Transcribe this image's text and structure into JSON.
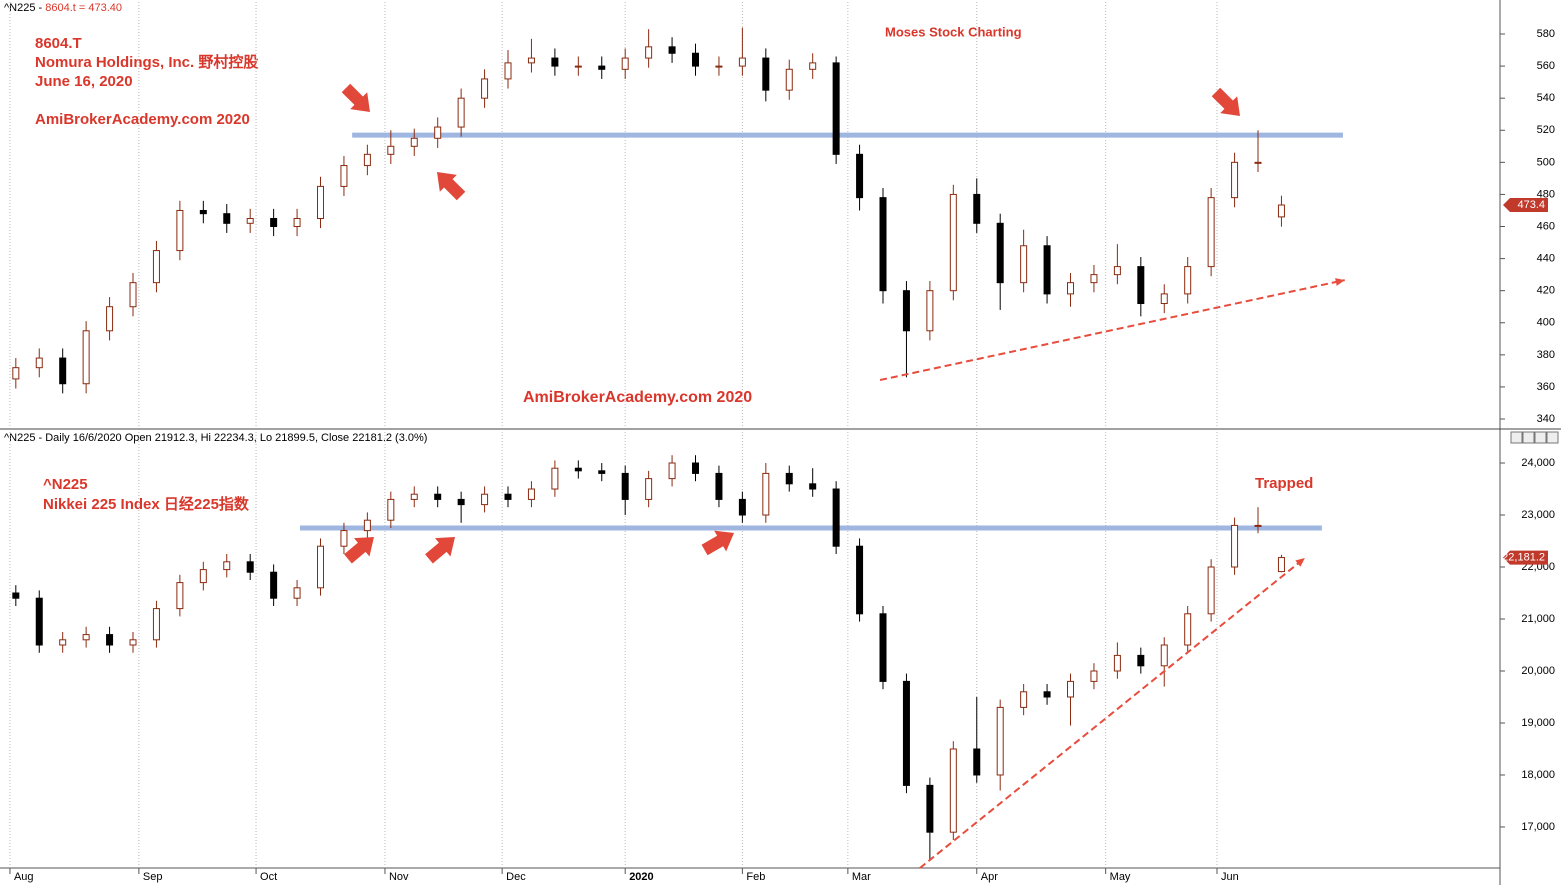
{
  "chart_data": [
    {
      "type": "candlestick",
      "header": [
        "^N225 -",
        "8604.t = 473.40"
      ],
      "annotations": [
        "8604.T",
        "Nomura Holdings, Inc.  野村控股",
        "June 16, 2020",
        "AmiBrokerAcademy.com  2020",
        "Moses Stock Charting",
        "AmiBrokerAcademy.com   2020"
      ],
      "x": [
        1,
        5,
        9,
        13,
        17,
        21,
        25,
        29,
        33,
        37,
        41,
        45,
        49,
        53,
        57,
        61,
        65,
        69,
        73,
        77,
        81,
        85,
        89,
        93,
        97,
        101,
        105,
        109,
        113,
        117,
        121,
        125,
        129,
        133,
        137,
        141,
        145,
        149,
        153,
        157,
        161,
        165,
        169,
        173,
        177,
        181,
        185,
        189,
        193,
        197,
        201,
        205,
        209,
        213,
        217
      ],
      "open": [
        365,
        372,
        378,
        362,
        395,
        410,
        425,
        445,
        470,
        468,
        462,
        465,
        460,
        465,
        485,
        498,
        505,
        510,
        515,
        522,
        540,
        552,
        562,
        565,
        560,
        560,
        558,
        565,
        572,
        568,
        560,
        560,
        565,
        545,
        558,
        562,
        505,
        478,
        420,
        395,
        420,
        480,
        462,
        425,
        448,
        418,
        425,
        430,
        435,
        412,
        418,
        435,
        478,
        500,
        466
      ],
      "high": [
        378,
        384,
        384,
        401,
        416,
        431,
        451,
        476,
        476,
        474,
        471,
        471,
        471,
        491,
        504,
        511,
        520,
        521,
        528,
        546,
        558,
        570,
        577,
        571,
        566,
        566,
        571,
        583,
        578,
        574,
        566,
        584,
        571,
        564,
        568,
        566,
        511,
        484,
        426,
        426,
        486,
        490,
        468,
        458,
        454,
        431,
        436,
        449,
        441,
        424,
        441,
        484,
        506,
        520,
        479.2
      ],
      "low": [
        359,
        366,
        356,
        356,
        389,
        404,
        419,
        439,
        462,
        456,
        456,
        454,
        454,
        459,
        479,
        492,
        499,
        504,
        509,
        516,
        534,
        546,
        556,
        554,
        554,
        552,
        552,
        559,
        562,
        554,
        554,
        554,
        538,
        539,
        552,
        499,
        470,
        412,
        366,
        389,
        414,
        456,
        408,
        419,
        412,
        410,
        419,
        424,
        404,
        406,
        412,
        429,
        472,
        494,
        459.9
      ],
      "close": [
        372,
        378,
        362,
        395,
        410,
        425,
        445,
        470,
        468,
        462,
        465,
        460,
        465,
        485,
        498,
        505,
        510,
        515,
        522,
        540,
        552,
        562,
        565,
        560,
        560,
        558,
        565,
        572,
        568,
        560,
        560,
        565,
        545,
        558,
        562,
        505,
        478,
        420,
        395,
        420,
        480,
        462,
        425,
        448,
        418,
        425,
        430,
        435,
        412,
        418,
        435,
        478,
        500,
        500,
        473.4
      ],
      "xlim": [
        -1.7,
        254.3
      ],
      "ylim": [
        334.4,
        601.2
      ],
      "yticks": [
        340,
        360,
        380,
        400,
        420,
        440,
        460,
        480,
        500,
        520,
        540,
        560,
        580
      ],
      "up_color": "#8b2a10",
      "down_color": "#000000",
      "tag_color": "#c0392b",
      "resistance": {
        "value": 517,
        "x": [
          58.4,
          227.5
        ],
        "color": "#9fb6e0"
      },
      "trendline": {
        "x": [
          148.5,
          227.8
        ],
        "y": [
          364.3,
          426.6
        ],
        "color": "#e74c3c"
      }
    },
    {
      "type": "candlestick",
      "header": [
        "^N225 - Daily 16/6/2020 Open 21912.3, Hi 22234.3, Lo 21899.5, Close 22181.2 (3.0%)"
      ],
      "annotations": [
        "^N225",
        "Nikkei 225 Index 日经225指数",
        "Trapped"
      ],
      "x": [
        1,
        5,
        9,
        13,
        17,
        21,
        25,
        29,
        33,
        37,
        41,
        45,
        49,
        53,
        57,
        61,
        65,
        69,
        73,
        77,
        81,
        85,
        89,
        93,
        97,
        101,
        105,
        109,
        113,
        117,
        121,
        125,
        129,
        133,
        137,
        141,
        145,
        149,
        153,
        157,
        161,
        165,
        169,
        173,
        177,
        181,
        185,
        189,
        193,
        197,
        201,
        205,
        209,
        213,
        217
      ],
      "open": [
        21500,
        21400,
        20500,
        20600,
        20700,
        20500,
        20600,
        21200,
        21700,
        21950,
        22100,
        21900,
        21400,
        21600,
        22400,
        22700,
        22900,
        23300,
        23400,
        23300,
        23200,
        23400,
        23300,
        23500,
        23900,
        23850,
        23800,
        23300,
        23700,
        24000,
        23800,
        23300,
        23000,
        23800,
        23600,
        23500,
        22400,
        21100,
        19800,
        17800,
        16900,
        18500,
        18000,
        19300,
        19600,
        19500,
        19800,
        20000,
        20300,
        20100,
        20500,
        21100,
        22000,
        22800,
        21912.3
      ],
      "high": [
        21650,
        21550,
        20750,
        20850,
        20850,
        20750,
        21350,
        21850,
        22100,
        22250,
        22250,
        22050,
        21750,
        22550,
        22850,
        23050,
        23450,
        23550,
        23550,
        23450,
        23550,
        23550,
        23650,
        24050,
        24050,
        24000,
        23950,
        23850,
        24150,
        24150,
        23950,
        23450,
        24000,
        23950,
        23900,
        23650,
        22550,
        21250,
        19950,
        17950,
        18650,
        19500,
        19450,
        19750,
        19750,
        19950,
        20150,
        20550,
        20450,
        20650,
        21250,
        22150,
        22950,
        23150,
        22234.3
      ],
      "low": [
        21250,
        20350,
        20350,
        20450,
        20350,
        20350,
        20450,
        21050,
        21550,
        21800,
        21750,
        21250,
        21250,
        21450,
        22250,
        22550,
        22750,
        23150,
        23150,
        22850,
        23050,
        23150,
        23150,
        23350,
        23700,
        23650,
        23000,
        23150,
        23550,
        23650,
        23150,
        22850,
        22850,
        23450,
        23350,
        22250,
        20950,
        19650,
        17650,
        16350,
        16750,
        17850,
        17700,
        19150,
        19350,
        18950,
        19650,
        19850,
        19950,
        19700,
        20350,
        20950,
        21850,
        22650,
        21899.5
      ],
      "close": [
        21400,
        20500,
        20600,
        20700,
        20500,
        20600,
        21200,
        21700,
        21950,
        22100,
        21900,
        21400,
        21600,
        22400,
        22700,
        22900,
        23300,
        23400,
        23300,
        23200,
        23400,
        23300,
        23500,
        23900,
        23850,
        23800,
        23300,
        23700,
        24000,
        23800,
        23300,
        23000,
        23800,
        23600,
        23500,
        22400,
        21100,
        19800,
        17800,
        16900,
        18500,
        18000,
        19300,
        19600,
        19500,
        19800,
        20000,
        20300,
        20100,
        20500,
        21100,
        22000,
        22800,
        22800,
        22181.2
      ],
      "last_value_label": "22,181.2",
      "xlim": [
        -1.7,
        254.3
      ],
      "xticks": [
        {
          "value": 0,
          "label": "Aug"
        },
        {
          "value": 22,
          "label": "Sep"
        },
        {
          "value": 42,
          "label": "Oct"
        },
        {
          "value": 64,
          "label": "Nov"
        },
        {
          "value": 84,
          "label": "Dec"
        },
        {
          "value": 105,
          "label": "2020"
        },
        {
          "value": 125,
          "label": "Feb"
        },
        {
          "value": 143,
          "label": "Mar"
        },
        {
          "value": 165,
          "label": "Apr"
        },
        {
          "value": 187,
          "label": "May"
        },
        {
          "value": 206,
          "label": "Jun"
        }
      ],
      "ylim": [
        16211,
        24635
      ],
      "yticks": [
        {
          "value": 17000,
          "label": "17,000"
        },
        {
          "value": 18000,
          "label": "18,000"
        },
        {
          "value": 19000,
          "label": "19,000"
        },
        {
          "value": 20000,
          "label": "20,000"
        },
        {
          "value": 21000,
          "label": "21,000"
        },
        {
          "value": 22000,
          "label": "22,000"
        },
        {
          "value": 23000,
          "label": "23,000"
        },
        {
          "value": 24000,
          "label": "24,000"
        }
      ],
      "up_color": "#8b2a10",
      "down_color": "#000000",
      "tag_color": "#c0392b",
      "resistance": {
        "value": 22750,
        "x": [
          49.5,
          223.9
        ],
        "color": "#9fb6e0"
      },
      "trendline": {
        "x": [
          155.3,
          221
        ],
        "y": [
          16211,
          22173
        ],
        "color": "#e74c3c"
      }
    }
  ]
}
